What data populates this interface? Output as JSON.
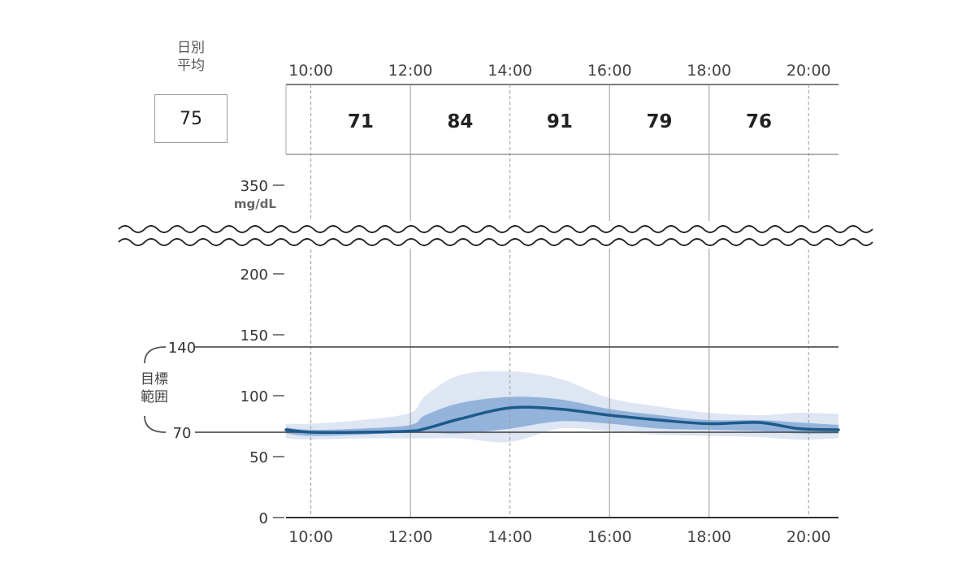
{
  "daily_average": {
    "label_line1": "日別",
    "label_line2": "平均",
    "value": "75"
  },
  "target_range": {
    "label_line1": "目標",
    "label_line2": "範囲",
    "low": 70,
    "high": 140
  },
  "unit": "mg/dL",
  "colors": {
    "median_line": "#1d5a8a",
    "inner_band": "#93b3db",
    "outer_band": "#dde6f2",
    "target_line": "#555555"
  },
  "chart_data": {
    "type": "area",
    "x_tick_labels": [
      "10:00",
      "12:00",
      "14:00",
      "16:00",
      "18:00",
      "20:00"
    ],
    "x_ticks_hours": [
      10,
      12,
      14,
      16,
      18,
      20
    ],
    "xlim": [
      9.5,
      20.6
    ],
    "y_ticks": [
      0,
      50,
      100,
      150,
      200
    ],
    "y_break_tick": 350,
    "ylim": [
      0,
      350
    ],
    "period_averages": [
      "71",
      "84",
      "91",
      "79",
      "76"
    ],
    "grid": true,
    "series": [
      {
        "kind": "median",
        "x": [
          9.5,
          10,
          11,
          12,
          12.3,
          13,
          14,
          15,
          16,
          17,
          18,
          19,
          19.8,
          20.6
        ],
        "values": [
          72,
          70,
          70,
          71,
          73,
          81,
          90,
          89,
          84,
          80,
          77,
          78,
          73,
          72
        ]
      },
      {
        "kind": "interquartile",
        "x": [
          9.5,
          10,
          11,
          12,
          12.3,
          13,
          14,
          15,
          16,
          17,
          18,
          19,
          19.8,
          20.6
        ],
        "upper": [
          74,
          72,
          73,
          76,
          84,
          94,
          99,
          97,
          89,
          84,
          80,
          80,
          78,
          76
        ],
        "lower": [
          69,
          67,
          68,
          70,
          70,
          69,
          73,
          79,
          77,
          73,
          72,
          71,
          69,
          69
        ]
      },
      {
        "kind": "range",
        "x": [
          9.5,
          10,
          11,
          12,
          12.3,
          13,
          14,
          15,
          16,
          17,
          18,
          19,
          19.8,
          20.6
        ],
        "upper": [
          77,
          77,
          80,
          86,
          100,
          117,
          120,
          114,
          98,
          91,
          86,
          84,
          86,
          85
        ],
        "lower": [
          65,
          64,
          65,
          65,
          65,
          65,
          62,
          73,
          71,
          68,
          67,
          66,
          64,
          65
        ]
      }
    ]
  }
}
